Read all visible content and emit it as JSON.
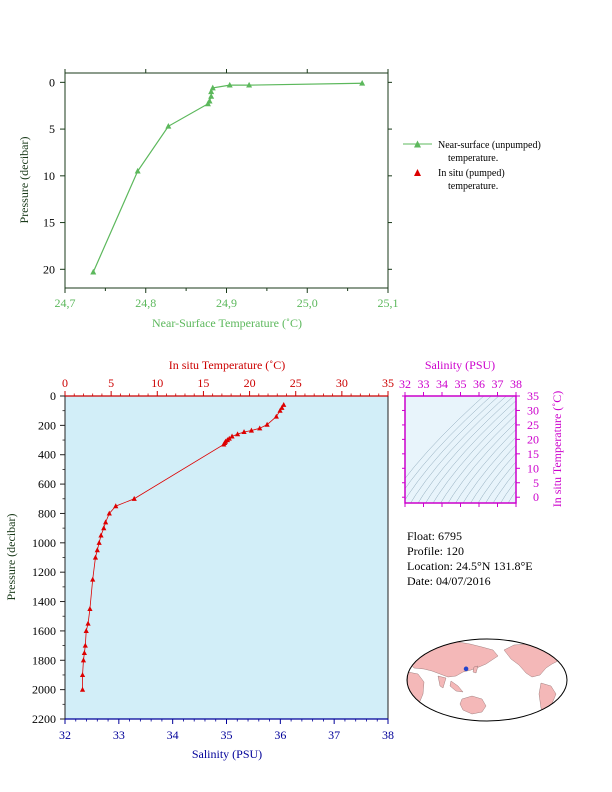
{
  "chart_data": [
    {
      "type": "line",
      "xlabel": "Near-Surface Temperature (˚C)",
      "ylabel": "Pressure (decibar)",
      "xlim": [
        24.7,
        25.1
      ],
      "ylim": [
        22,
        -1
      ],
      "xticks": [
        "24,7",
        "24,8",
        "24,9",
        "25,0",
        "25,1"
      ],
      "yticks": [
        "0",
        "5",
        "10",
        "15",
        "20"
      ],
      "series": [
        {
          "color": "#5cb85c",
          "marker": "triangle",
          "x": [
            24.735,
            24.79,
            24.828,
            24.877,
            24.879,
            24.881,
            24.881,
            24.883,
            24.904,
            24.928,
            25.068
          ],
          "y": [
            20.3,
            9.5,
            4.7,
            2.3,
            2.0,
            1.5,
            1.0,
            0.6,
            0.3,
            0.3,
            0.1
          ]
        }
      ],
      "legend": {
        "position": "right",
        "entries": [
          {
            "line1": "Near-surface (unpumped)",
            "line2": "temperature.",
            "color": "#5cb85c",
            "marker": "line-triangle"
          },
          {
            "line1": "In situ (pumped)",
            "line2": "temperature.",
            "color": "#dd0000",
            "marker": "triangle"
          }
        ]
      }
    },
    {
      "type": "line",
      "xlabel": "Salinity (PSU)",
      "x2label": "In situ Temperature (˚C)",
      "ylabel": "Pressure (decibar)",
      "xlim": [
        32,
        38
      ],
      "x2lim": [
        0,
        35
      ],
      "ylim": [
        2200,
        0
      ],
      "xticks": [
        "32",
        "33",
        "34",
        "35",
        "36",
        "37",
        "38"
      ],
      "x2ticks": [
        "0",
        "5",
        "10",
        "15",
        "20",
        "25",
        "30",
        "35"
      ],
      "yticks": [
        "0",
        "200",
        "400",
        "600",
        "800",
        "1000",
        "1200",
        "1400",
        "1600",
        "1800",
        "2000",
        "2200"
      ],
      "plot_background": "#d2eef8",
      "series": [
        {
          "color": "#dd0000",
          "marker": "triangle",
          "x2": [
            23.7,
            23.5,
            23.3,
            22.9,
            21.9,
            21.1,
            20.2,
            19.4,
            18.7,
            18.1,
            17.8,
            17.6,
            17.4,
            17.3,
            17.2,
            7.5,
            5.5,
            4.8,
            4.4,
            4.2,
            3.9,
            3.7,
            3.5,
            3.3,
            3.0,
            2.7,
            2.5,
            2.3,
            2.2,
            2.1,
            2.0,
            1.9,
            1.9
          ],
          "y": [
            60,
            80,
            100,
            140,
            195,
            220,
            235,
            245,
            260,
            275,
            290,
            300,
            310,
            320,
            330,
            700,
            750,
            800,
            860,
            900,
            950,
            1000,
            1050,
            1100,
            1250,
            1450,
            1550,
            1600,
            1700,
            1750,
            1800,
            1900,
            2000
          ]
        }
      ]
    },
    {
      "type": "scatter",
      "title": "Salinity (PSU)",
      "ylabel": "In situ Temperature (˚C)",
      "xlim": [
        32,
        38
      ],
      "ylim": [
        -2,
        35
      ],
      "xticks": [
        "32",
        "33",
        "34",
        "35",
        "36",
        "37",
        "38"
      ],
      "yticks": [
        "0",
        "5",
        "10",
        "15",
        "20",
        "25",
        "30",
        "35"
      ],
      "plot_background": "#e8f4fb",
      "series": []
    }
  ],
  "float_info": {
    "float": "Float:  6795",
    "profile": "Profile:  120",
    "location": "Location:  24.5°N  131.8°E",
    "date": "Date:  04/07/2016"
  },
  "map": {
    "float_position": {
      "lat": 24.5,
      "lon": 131.8
    },
    "marker_color": "#2244cc",
    "land_color": "#f4b8b8",
    "ocean_color": "#ffffff"
  },
  "colors": {
    "top_axis": "#5cb85c",
    "top_frame": "#1a3a1a",
    "bottom_temp_axis": "#cc0000",
    "bottom_sal_axis": "#000099",
    "ts_axis": "#cc00cc",
    "pressure_label": "#1a3a1a"
  }
}
